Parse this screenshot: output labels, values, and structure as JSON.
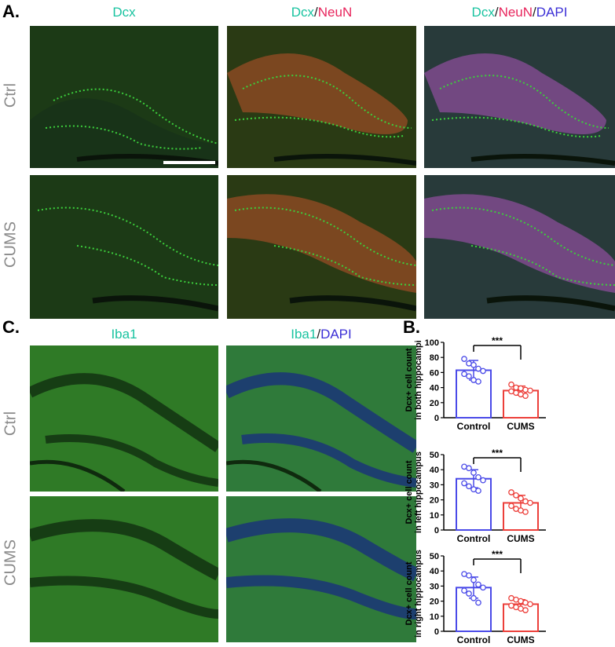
{
  "panel_a": {
    "letter": "A.",
    "columns": [
      [
        {
          "text": "Dcx",
          "color": "teal"
        }
      ],
      [
        {
          "text": "Dcx",
          "color": "teal"
        },
        {
          "text": "/",
          "color": "slash"
        },
        {
          "text": "NeuN",
          "color": "pink"
        }
      ],
      [
        {
          "text": "Dcx",
          "color": "teal"
        },
        {
          "text": "/",
          "color": "slash"
        },
        {
          "text": "NeuN",
          "color": "pink"
        },
        {
          "text": "/",
          "color": "slash"
        },
        {
          "text": "DAPI",
          "color": "blue"
        }
      ]
    ],
    "rows": [
      "Ctrl",
      "CUMS"
    ]
  },
  "panel_c": {
    "letter": "C.",
    "columns": [
      [
        {
          "text": "Iba1",
          "color": "teal"
        }
      ],
      [
        {
          "text": "Iba1",
          "color": "teal"
        },
        {
          "text": "/",
          "color": "slash"
        },
        {
          "text": "DAPI",
          "color": "blue"
        }
      ]
    ],
    "rows": [
      "Ctrl",
      "CUMS"
    ]
  },
  "panel_b": {
    "letter": "B.",
    "significance": "***"
  },
  "colors": {
    "teal": "#19c3a0",
    "pink": "#e8245c",
    "blue": "#3b2fd6",
    "control": "#4a4ae8",
    "cums": "#ec3f3a"
  },
  "chart_data": [
    {
      "type": "bar",
      "ylabel_lines": [
        "Dcx+ cell count",
        "in both hippocampi"
      ],
      "categories": [
        "Control",
        "CUMS"
      ],
      "values": [
        63,
        36
      ],
      "errors": [
        13,
        6
      ],
      "ylim": [
        0,
        100
      ],
      "yticks": [
        0,
        20,
        40,
        60,
        80,
        100
      ],
      "points": [
        [
          78,
          72,
          70,
          65,
          62,
          58,
          55,
          50,
          48
        ],
        [
          44,
          40,
          39,
          37,
          36,
          35,
          33,
          31,
          29
        ]
      ],
      "annotation": "***"
    },
    {
      "type": "bar",
      "ylabel_lines": [
        "Dcx+ cell count",
        "in left hippocampus"
      ],
      "categories": [
        "Control",
        "CUMS"
      ],
      "values": [
        34,
        18
      ],
      "errors": [
        6,
        5
      ],
      "ylim": [
        0,
        50
      ],
      "yticks": [
        0,
        10,
        20,
        30,
        40,
        50
      ],
      "points": [
        [
          42,
          41,
          38,
          35,
          33,
          31,
          29,
          27,
          26
        ],
        [
          25,
          23,
          21,
          19,
          18,
          16,
          14,
          13,
          12
        ]
      ],
      "annotation": "***"
    },
    {
      "type": "bar",
      "ylabel_lines": [
        "Dcx+ cell count",
        "in right hippocampus"
      ],
      "categories": [
        "Control",
        "CUMS"
      ],
      "values": [
        29,
        18
      ],
      "errors": [
        7,
        3
      ],
      "ylim": [
        0,
        50
      ],
      "yticks": [
        0,
        10,
        20,
        30,
        40,
        50
      ],
      "points": [
        [
          38,
          37,
          34,
          31,
          29,
          27,
          25,
          22,
          19
        ],
        [
          22,
          21,
          20,
          19,
          18,
          17,
          16,
          15,
          14
        ]
      ],
      "annotation": "***"
    }
  ]
}
